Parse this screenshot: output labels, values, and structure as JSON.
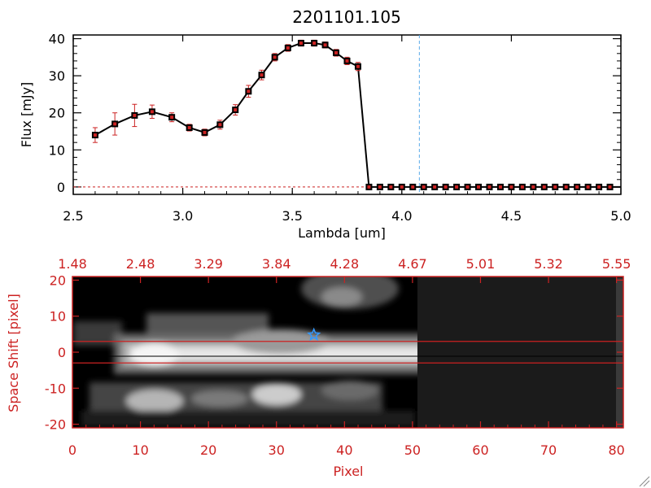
{
  "chart_data": [
    {
      "type": "line",
      "title": "2201101.105",
      "xlabel": "Lambda [um]",
      "ylabel": "Flux [mJy]",
      "xlim": [
        2.5,
        5.0
      ],
      "ylim": [
        -2,
        41
      ],
      "x_ticks": [
        "2.5",
        "3.0",
        "3.5",
        "4.0",
        "4.5",
        "5.0"
      ],
      "y_ticks": [
        "0",
        "10",
        "20",
        "30",
        "40"
      ],
      "vline_x": 4.08,
      "series": [
        {
          "x": [
            2.6,
            2.69,
            2.78,
            2.86,
            2.95,
            3.03,
            3.1,
            3.17,
            3.24,
            3.3,
            3.36,
            3.42,
            3.48,
            3.54,
            3.6,
            3.65,
            3.7,
            3.75,
            3.8,
            3.85,
            3.9,
            3.95,
            4.0,
            4.05,
            4.1,
            4.15,
            4.2,
            4.25,
            4.3,
            4.35,
            4.4,
            4.45,
            4.5,
            4.55,
            4.6,
            4.65,
            4.7,
            4.75,
            4.8,
            4.85,
            4.9,
            4.95
          ],
          "y": [
            14.0,
            17.0,
            19.3,
            20.3,
            18.8,
            16.0,
            14.7,
            16.8,
            20.8,
            25.8,
            30.2,
            35.0,
            37.5,
            38.8,
            38.8,
            38.3,
            36.2,
            34.0,
            32.5,
            0,
            0,
            0,
            0,
            0,
            0,
            0,
            0,
            0,
            0,
            0,
            0,
            0,
            0,
            0,
            0,
            0,
            0,
            0,
            0,
            0,
            0,
            0
          ],
          "yerr": [
            2.0,
            3.0,
            3.0,
            1.8,
            1.2,
            0.9,
            0.9,
            1.2,
            1.4,
            1.6,
            1.3,
            1.0,
            0.9,
            0.8,
            0.8,
            0.8,
            0.9,
            1.0,
            1.1,
            0,
            0,
            0,
            0,
            0,
            0,
            0,
            0,
            0,
            0,
            0,
            0,
            0,
            0,
            0,
            0,
            0,
            0,
            0,
            0,
            0,
            0,
            0
          ]
        }
      ]
    },
    {
      "type": "heatmap",
      "xlabel": "Pixel",
      "ylabel": "Space Shift [pixel]",
      "xlim": [
        0,
        81
      ],
      "ylim": [
        -21,
        21
      ],
      "x_ticks": [
        "0",
        "10",
        "20",
        "30",
        "40",
        "50",
        "60",
        "70",
        "80"
      ],
      "y_ticks": [
        "-20",
        "-10",
        "0",
        "10",
        "20"
      ],
      "top_ticks": [
        "1.48",
        "2.48",
        "3.29",
        "3.84",
        "4.28",
        "4.67",
        "5.01",
        "5.32",
        "5.55"
      ],
      "data_extent_pixel": 50,
      "aperture_lines": [
        3,
        -3
      ],
      "center_line": 0,
      "star_marker": {
        "pixel": 35.5,
        "shift": 4.8
      },
      "colors": {
        "accent": "#cc2222",
        "star": "#3399ff",
        "vline": "#5aaae8"
      }
    }
  ]
}
